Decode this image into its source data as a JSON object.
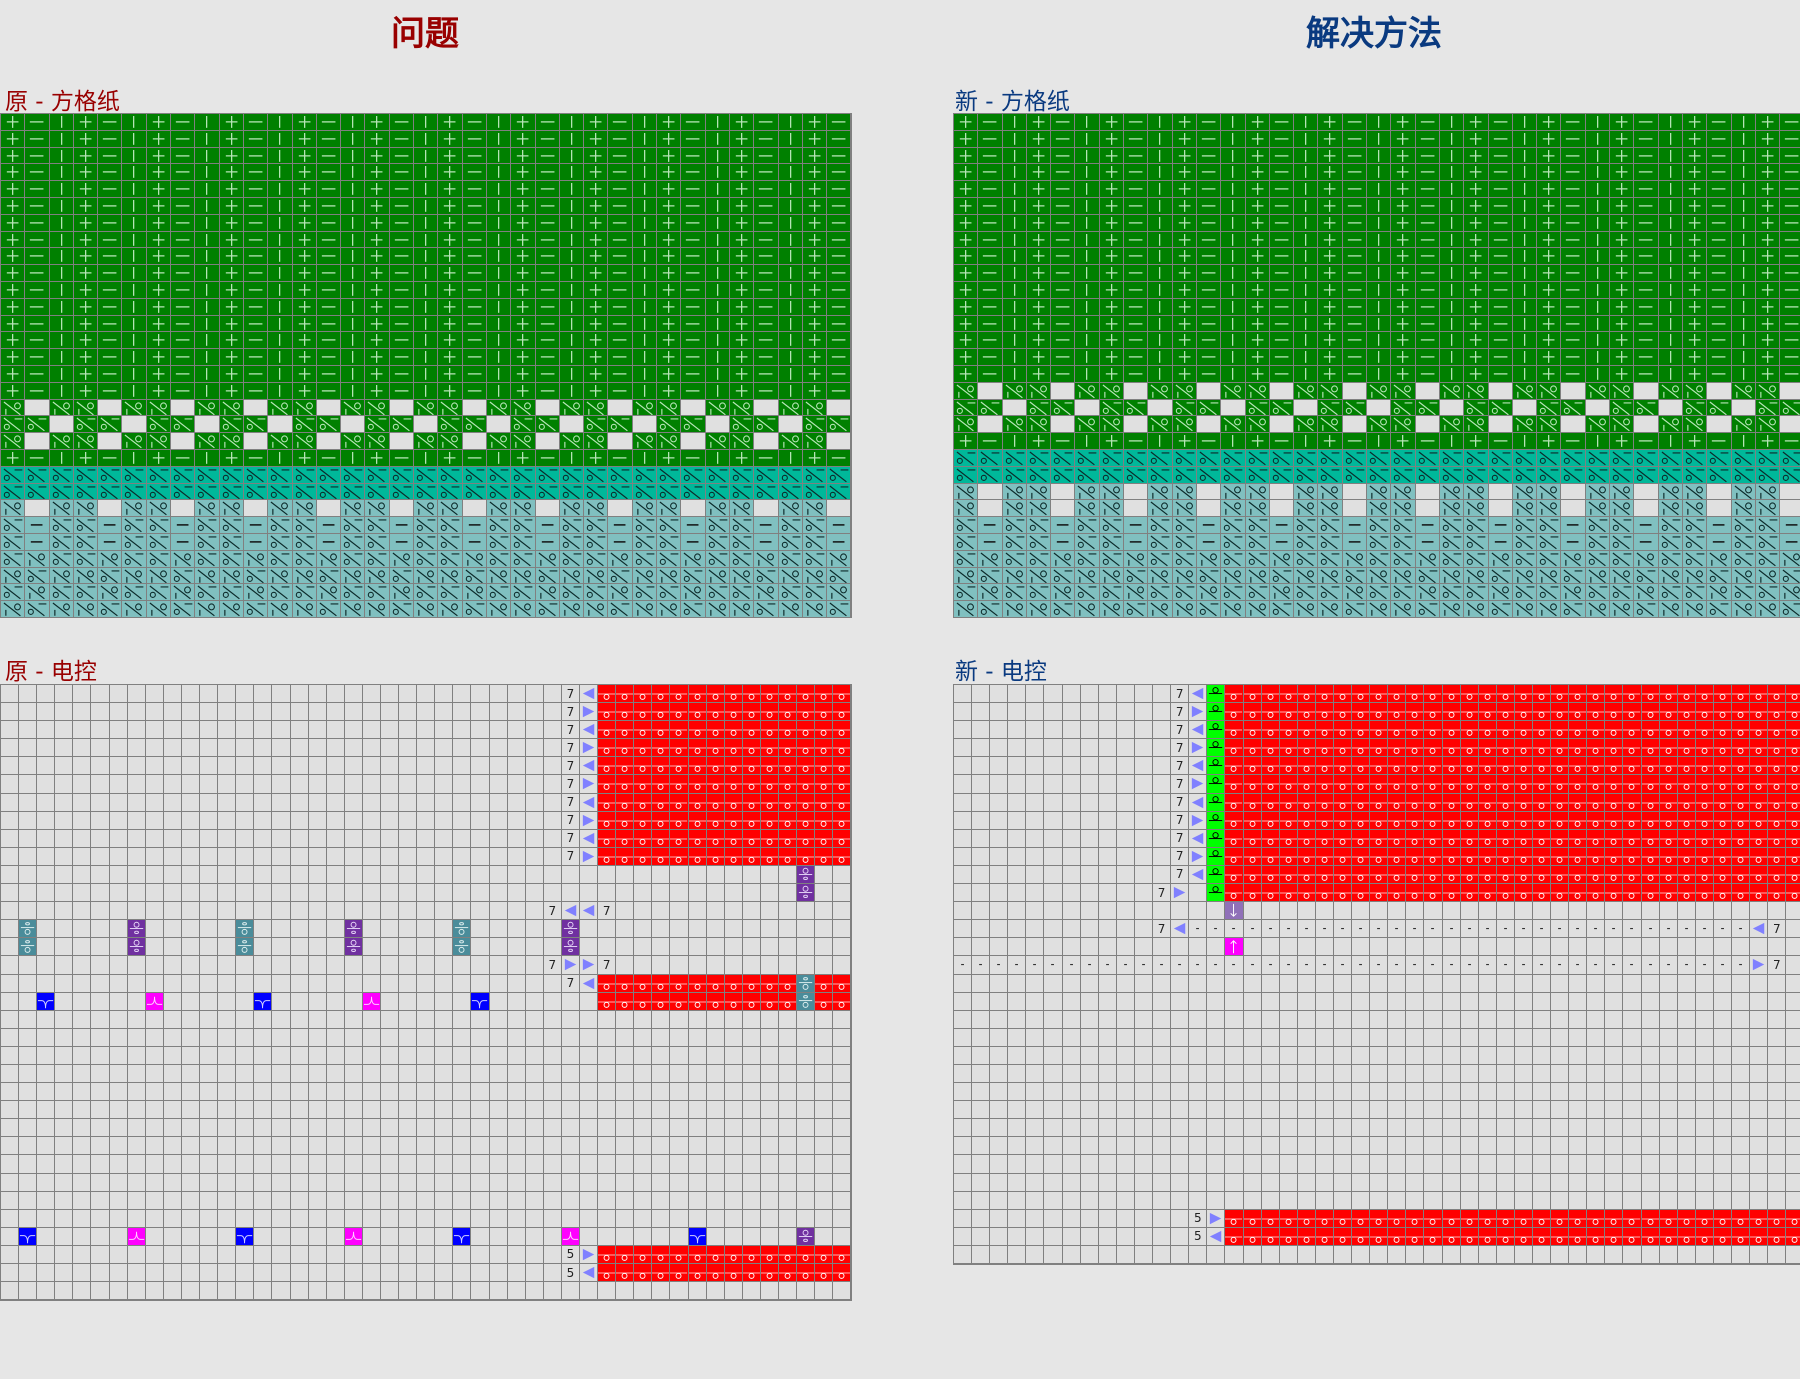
{
  "headers": {
    "problem": "问题",
    "solution": "解决方法"
  },
  "labels": {
    "orig_grid": "原 - 方格纸",
    "new_grid": "新 - 方格纸",
    "orig_ctrl": "原 - 电控",
    "new_ctrl": "新 - 电控"
  },
  "colors": {
    "green": "#008000",
    "teal": "#00b89a",
    "light_teal": "#80c0c0",
    "blank": "#e0e0e0",
    "grid_line": "#808080",
    "red": "#ff0000",
    "lime": "#00ff00",
    "arrow": "#8080ff",
    "purple": "#7030a0",
    "teal_stitch": "#4a8c9a",
    "blue": "#0000ff",
    "magenta": "#ff00ff",
    "purple_light": "#9070b8",
    "title_red": "#990000",
    "title_blue": "#0a3a80"
  },
  "symbol_legend": {
    "+": "plus",
    "-": "minus",
    "|": "bar",
    "A": "tuck-right",
    "B": "tuck-left",
    "_": "empty",
    "D": "dash"
  },
  "orig_grid": {
    "columns": 35,
    "rows": [
      {
        "bg": "green",
        "pattern": "+-|",
        "repeat": 17
      },
      {
        "bg": "green",
        "pattern": "A_A",
        "repeat": 1
      },
      {
        "bg": "green",
        "pattern": "BB_",
        "repeat": 1
      },
      {
        "bg": "green",
        "pattern": "A_A",
        "repeat": 1
      },
      {
        "bg": "green",
        "pattern": "+-|",
        "repeat": 1
      },
      {
        "bg": "teal",
        "pattern": "BBB",
        "repeat": 2
      },
      {
        "bg": "light_teal",
        "pattern": "A_A",
        "repeat": 1
      },
      {
        "bg": "light_teal",
        "pattern": "BDB",
        "repeat": 2
      },
      {
        "bg": "light_teal",
        "pattern": "BAB",
        "repeat": 1
      },
      {
        "bg": "light_teal",
        "pattern": "ABA",
        "repeat": 1
      },
      {
        "bg": "light_teal",
        "pattern": "BAB",
        "repeat": 1
      },
      {
        "bg": "light_teal",
        "pattern": "ABA",
        "repeat": 1
      }
    ]
  },
  "new_grid": {
    "columns": 35,
    "rows": [
      {
        "bg": "green",
        "pattern": "+-|",
        "repeat": 16
      },
      {
        "bg": "green",
        "pattern": "A_A",
        "repeat": 1
      },
      {
        "bg": "green",
        "pattern": "BB_",
        "repeat": 1
      },
      {
        "bg": "green",
        "pattern": "A_A",
        "repeat": 1
      },
      {
        "bg": "green",
        "pattern": "+-|",
        "repeat": 1
      },
      {
        "bg": "teal",
        "pattern": "BBB",
        "repeat": 2
      },
      {
        "bg": "light_teal",
        "pattern": "A_A",
        "repeat": 2
      },
      {
        "bg": "light_teal",
        "pattern": "BDB",
        "repeat": 2
      },
      {
        "bg": "light_teal",
        "pattern": "BAB",
        "repeat": 1
      },
      {
        "bg": "light_teal",
        "pattern": "ABA",
        "repeat": 1
      },
      {
        "bg": "light_teal",
        "pattern": "BAB",
        "repeat": 1
      },
      {
        "bg": "light_teal",
        "pattern": "ABA",
        "repeat": 1
      }
    ]
  },
  "orig_ctrl": {
    "columns": 47,
    "row_count": 34,
    "cells": [
      {
        "r": [
          0,
          9
        ],
        "c": [
          31,
          31
        ],
        "t": "num",
        "text": "7"
      },
      {
        "r": [
          0,
          9
        ],
        "c": [
          32,
          32
        ],
        "t": "arrow-alt"
      },
      {
        "r": [
          0,
          9
        ],
        "c": [
          33,
          46
        ],
        "t": "red"
      },
      {
        "r": [
          10,
          11
        ],
        "c": [
          44,
          44
        ],
        "t": "purple"
      },
      {
        "r": [
          12,
          12
        ],
        "c": [
          30,
          30
        ],
        "t": "num",
        "text": "7"
      },
      {
        "r": [
          12,
          12
        ],
        "c": [
          31,
          32
        ],
        "t": "arrow-left"
      },
      {
        "r": [
          12,
          12
        ],
        "c": [
          33,
          33
        ],
        "t": "num",
        "text": "7"
      },
      {
        "r": [
          13,
          14
        ],
        "c": [
          1,
          1
        ],
        "t": "teal"
      },
      {
        "r": [
          13,
          14
        ],
        "c": [
          7,
          7
        ],
        "t": "purple"
      },
      {
        "r": [
          13,
          14
        ],
        "c": [
          13,
          13
        ],
        "t": "teal"
      },
      {
        "r": [
          13,
          14
        ],
        "c": [
          19,
          19
        ],
        "t": "purple"
      },
      {
        "r": [
          13,
          14
        ],
        "c": [
          25,
          25
        ],
        "t": "teal"
      },
      {
        "r": [
          13,
          14
        ],
        "c": [
          31,
          31
        ],
        "t": "purple"
      },
      {
        "r": [
          15,
          15
        ],
        "c": [
          30,
          30
        ],
        "t": "num",
        "text": "7"
      },
      {
        "r": [
          15,
          15
        ],
        "c": [
          31,
          32
        ],
        "t": "arrow-right"
      },
      {
        "r": [
          15,
          15
        ],
        "c": [
          33,
          33
        ],
        "t": "num",
        "text": "7"
      },
      {
        "r": [
          16,
          16
        ],
        "c": [
          31,
          31
        ],
        "t": "num",
        "text": "7"
      },
      {
        "r": [
          16,
          16
        ],
        "c": [
          32,
          32
        ],
        "t": "arrow-left"
      },
      {
        "r": [
          16,
          17
        ],
        "c": [
          33,
          43
        ],
        "t": "red"
      },
      {
        "r": [
          16,
          17
        ],
        "c": [
          44,
          44
        ],
        "t": "teal"
      },
      {
        "r": [
          16,
          17
        ],
        "c": [
          45,
          46
        ],
        "t": "red"
      },
      {
        "r": [
          17,
          17
        ],
        "c": [
          2,
          2
        ],
        "t": "blue"
      },
      {
        "r": [
          17,
          17
        ],
        "c": [
          8,
          8
        ],
        "t": "magenta"
      },
      {
        "r": [
          17,
          17
        ],
        "c": [
          14,
          14
        ],
        "t": "blue"
      },
      {
        "r": [
          17,
          17
        ],
        "c": [
          20,
          20
        ],
        "t": "magenta"
      },
      {
        "r": [
          17,
          17
        ],
        "c": [
          26,
          26
        ],
        "t": "blue"
      },
      {
        "r": [
          30,
          30
        ],
        "c": [
          1,
          1
        ],
        "t": "blue"
      },
      {
        "r": [
          30,
          30
        ],
        "c": [
          7,
          7
        ],
        "t": "magenta"
      },
      {
        "r": [
          30,
          30
        ],
        "c": [
          13,
          13
        ],
        "t": "blue"
      },
      {
        "r": [
          30,
          30
        ],
        "c": [
          19,
          19
        ],
        "t": "magenta"
      },
      {
        "r": [
          30,
          30
        ],
        "c": [
          25,
          25
        ],
        "t": "blue"
      },
      {
        "r": [
          30,
          30
        ],
        "c": [
          31,
          31
        ],
        "t": "magenta"
      },
      {
        "r": [
          30,
          30
        ],
        "c": [
          38,
          38
        ],
        "t": "blue"
      },
      {
        "r": [
          30,
          30
        ],
        "c": [
          44,
          44
        ],
        "t": "purple"
      },
      {
        "r": [
          31,
          31
        ],
        "c": [
          31,
          31
        ],
        "t": "num",
        "text": "5"
      },
      {
        "r": [
          31,
          31
        ],
        "c": [
          32,
          32
        ],
        "t": "arrow-right"
      },
      {
        "r": [
          31,
          32
        ],
        "c": [
          33,
          46
        ],
        "t": "red"
      },
      {
        "r": [
          32,
          32
        ],
        "c": [
          31,
          31
        ],
        "t": "num",
        "text": "5"
      },
      {
        "r": [
          32,
          32
        ],
        "c": [
          32,
          32
        ],
        "t": "arrow-left"
      }
    ]
  },
  "new_ctrl": {
    "columns": 47,
    "row_count": 32,
    "cells": [
      {
        "r": [
          0,
          10
        ],
        "c": [
          12,
          12
        ],
        "t": "num",
        "text": "7"
      },
      {
        "r": [
          0,
          10
        ],
        "c": [
          13,
          13
        ],
        "t": "arrow-alt"
      },
      {
        "r": [
          0,
          11
        ],
        "c": [
          14,
          14
        ],
        "t": "lime"
      },
      {
        "r": [
          0,
          11
        ],
        "c": [
          15,
          46
        ],
        "t": "red"
      },
      {
        "r": [
          11,
          11
        ],
        "c": [
          11,
          11
        ],
        "t": "num",
        "text": "7"
      },
      {
        "r": [
          11,
          11
        ],
        "c": [
          12,
          12
        ],
        "t": "arrow-right"
      },
      {
        "r": [
          12,
          12
        ],
        "c": [
          15,
          15
        ],
        "t": "purple-down"
      },
      {
        "r": [
          13,
          13
        ],
        "c": [
          11,
          11
        ],
        "t": "num",
        "text": "7"
      },
      {
        "r": [
          13,
          13
        ],
        "c": [
          12,
          12
        ],
        "t": "arrow-left"
      },
      {
        "r": [
          13,
          13
        ],
        "c": [
          13,
          43
        ],
        "t": "dash"
      },
      {
        "r": [
          13,
          13
        ],
        "c": [
          44,
          44
        ],
        "t": "arrow-left"
      },
      {
        "r": [
          13,
          13
        ],
        "c": [
          45,
          45
        ],
        "t": "num",
        "text": "7"
      },
      {
        "r": [
          14,
          14
        ],
        "c": [
          15,
          15
        ],
        "t": "magenta-up"
      },
      {
        "r": [
          15,
          15
        ],
        "c": [
          0,
          43
        ],
        "t": "dash"
      },
      {
        "r": [
          15,
          15
        ],
        "c": [
          44,
          44
        ],
        "t": "arrow-right"
      },
      {
        "r": [
          15,
          15
        ],
        "c": [
          45,
          45
        ],
        "t": "num",
        "text": "7"
      },
      {
        "r": [
          29,
          29
        ],
        "c": [
          13,
          13
        ],
        "t": "num",
        "text": "5"
      },
      {
        "r": [
          29,
          29
        ],
        "c": [
          14,
          14
        ],
        "t": "arrow-right"
      },
      {
        "r": [
          29,
          30
        ],
        "c": [
          15,
          46
        ],
        "t": "red"
      },
      {
        "r": [
          30,
          30
        ],
        "c": [
          13,
          13
        ],
        "t": "num",
        "text": "5"
      },
      {
        "r": [
          30,
          30
        ],
        "c": [
          14,
          14
        ],
        "t": "arrow-left"
      }
    ]
  }
}
